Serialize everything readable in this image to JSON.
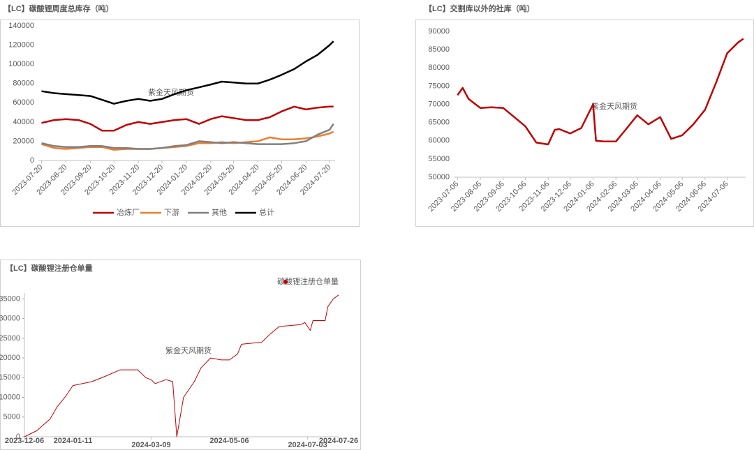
{
  "chart_data": [
    {
      "type": "line",
      "title": "【LC】碳酸锂周度总库存（吨）",
      "watermark": "紫金天风期货",
      "x": [
        "2023-07-20",
        "2023-08-05",
        "2023-08-20",
        "2023-09-05",
        "2023-09-20",
        "2023-10-05",
        "2023-10-20",
        "2023-11-05",
        "2023-11-20",
        "2023-12-05",
        "2023-12-20",
        "2024-01-05",
        "2024-01-20",
        "2024-02-05",
        "2024-02-20",
        "2024-03-05",
        "2024-03-20",
        "2024-04-05",
        "2024-04-20",
        "2024-05-05",
        "2024-05-20",
        "2024-06-05",
        "2024-06-20",
        "2024-07-05",
        "2024-07-20",
        "2024-07-25"
      ],
      "series": [
        {
          "name": "冶炼厂",
          "color": "#c00000",
          "values": [
            39000,
            42000,
            43000,
            42000,
            38000,
            31000,
            31000,
            37000,
            40000,
            38000,
            40000,
            42000,
            43000,
            38000,
            43000,
            46000,
            44000,
            42000,
            42000,
            45000,
            51000,
            56000,
            53000,
            55000,
            56000,
            56000
          ]
        },
        {
          "name": "下游",
          "color": "#ed7d31",
          "values": [
            17000,
            13000,
            12000,
            13000,
            14000,
            14000,
            11000,
            12000,
            12000,
            12000,
            13000,
            14000,
            15000,
            18000,
            18000,
            19000,
            18000,
            19000,
            20000,
            24000,
            22000,
            22000,
            23000,
            25000,
            28000,
            30000
          ]
        },
        {
          "name": "其他",
          "color": "#808080",
          "values": [
            18000,
            15000,
            14000,
            14000,
            15000,
            15000,
            13000,
            13000,
            12000,
            12000,
            13000,
            15000,
            16000,
            20000,
            19000,
            18000,
            19000,
            18000,
            17000,
            17000,
            17000,
            18000,
            20000,
            27000,
            32000,
            38000
          ]
        },
        {
          "name": "总计",
          "color": "#000000",
          "values": [
            72000,
            70000,
            69000,
            68000,
            67000,
            63000,
            59000,
            62000,
            64000,
            62000,
            64000,
            69000,
            73000,
            76000,
            79000,
            82000,
            81000,
            80000,
            80000,
            84000,
            89000,
            95000,
            103000,
            110000,
            120000,
            124000
          ]
        }
      ],
      "xlim": [
        "2023-07-16",
        "2024-07-27"
      ],
      "xticks": [
        "2023-07-20",
        "2023-08-20",
        "2023-09-20",
        "2023-10-20",
        "2023-11-20",
        "2023-12-20",
        "2024-01-20",
        "2024-02-20",
        "2024-03-20",
        "2024-04-20",
        "2024-05-20",
        "2024-06-20",
        "2024-07-20"
      ],
      "ylim": [
        0,
        140000
      ],
      "yticks": [
        0,
        20000,
        40000,
        60000,
        80000,
        100000,
        120000,
        140000
      ],
      "legend": "bottom",
      "grid": false
    },
    {
      "type": "line",
      "title": "【LC】交割库以外的社库（吨）",
      "watermark": "紫金天风期货",
      "x": [
        "2023-07-06",
        "2023-07-13",
        "2023-07-21",
        "2023-08-06",
        "2023-08-21",
        "2023-09-06",
        "2023-09-21",
        "2023-10-06",
        "2023-10-21",
        "2023-11-06",
        "2023-11-15",
        "2023-11-21",
        "2023-12-06",
        "2023-12-21",
        "2024-01-06",
        "2024-01-10",
        "2024-01-21",
        "2024-02-06",
        "2024-02-21",
        "2024-03-06",
        "2024-03-21",
        "2024-04-06",
        "2024-04-21",
        "2024-05-06",
        "2024-05-21",
        "2024-06-06",
        "2024-06-21",
        "2024-07-06",
        "2024-07-21",
        "2024-07-28"
      ],
      "series": [
        {
          "name": null,
          "color": "#c00000",
          "values": [
            72500,
            74500,
            71500,
            69000,
            69200,
            69000,
            66500,
            64000,
            59500,
            59000,
            63000,
            63200,
            62000,
            63500,
            70000,
            60000,
            59800,
            59800,
            63500,
            67000,
            64500,
            66500,
            60500,
            61500,
            64500,
            68500,
            76000,
            84000,
            87000,
            88000
          ]
        }
      ],
      "xlim": [
        "2023-07-01",
        "2024-07-31"
      ],
      "xticks": [
        "2023-07-06",
        "2023-08-06",
        "2023-09-06",
        "2023-10-06",
        "2023-11-06",
        "2023-12-06",
        "2024-01-06",
        "2024-02-06",
        "2024-03-06",
        "2024-04-06",
        "2024-05-06",
        "2024-06-06",
        "2024-07-06"
      ],
      "ylim": [
        50000,
        90000
      ],
      "yticks": [
        50000,
        55000,
        60000,
        65000,
        70000,
        75000,
        80000,
        85000,
        90000
      ],
      "grid": false
    },
    {
      "type": "line",
      "title": "【LC】碳酸锂注册仓单量",
      "watermark": "紫金天风期货",
      "x": [
        "2023-12-06",
        "2023-12-15",
        "2023-12-25",
        "2023-12-30",
        "2024-01-05",
        "2024-01-11",
        "2024-01-25",
        "2024-02-05",
        "2024-02-15",
        "2024-02-28",
        "2024-03-05",
        "2024-03-09",
        "2024-03-12",
        "2024-03-20",
        "2024-03-25",
        "2024-03-28",
        "2024-04-02",
        "2024-04-10",
        "2024-04-15",
        "2024-04-22",
        "2024-04-30",
        "2024-05-06",
        "2024-05-12",
        "2024-05-15",
        "2024-05-30",
        "2024-06-05",
        "2024-06-12",
        "2024-06-28",
        "2024-07-01",
        "2024-07-05",
        "2024-07-07",
        "2024-07-16",
        "2024-07-18",
        "2024-07-22",
        "2024-07-26"
      ],
      "series": [
        {
          "name": "碳酸锂注册仓单量",
          "color": "#c00000",
          "values": [
            0,
            1500,
            4500,
            7500,
            10000,
            13000,
            14000,
            15500,
            17000,
            17000,
            15000,
            14500,
            13500,
            14500,
            14000,
            0,
            10000,
            14000,
            17500,
            20000,
            19500,
            19500,
            21000,
            23500,
            24000,
            26000,
            28000,
            28500,
            29000,
            27000,
            29500,
            29500,
            33000,
            35000,
            36000
          ]
        }
      ],
      "xlim": [
        "2023-12-06",
        "2024-07-26"
      ],
      "xticks": [
        "2023-12-06",
        "2024-01-11",
        "2024-03-09",
        "2024-05-06",
        "2024-07-03",
        "2024-07-26"
      ],
      "ylim": [
        0,
        36500
      ],
      "yticks": [
        0,
        5000,
        10000,
        15000,
        20000,
        25000,
        30000,
        35000
      ],
      "legend": "top-right",
      "grid": false
    }
  ]
}
